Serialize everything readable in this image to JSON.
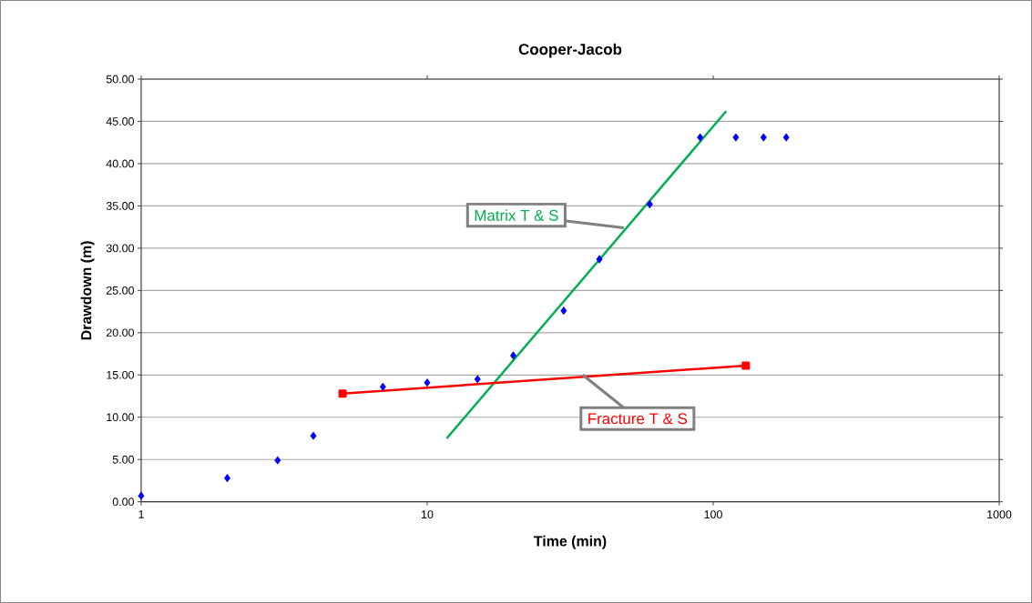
{
  "chart_data": {
    "type": "scatter",
    "title": "Cooper-Jacob",
    "xlabel": "Time (min)",
    "ylabel": "Drawdown (m)",
    "log": "x",
    "grid": "y",
    "xlim": [
      1,
      1000
    ],
    "xticks": [
      1,
      10,
      100,
      1000
    ],
    "ylim": [
      0,
      50
    ],
    "yticks": [
      {
        "value": 0,
        "label": "0.00"
      },
      {
        "value": 5,
        "label": "5.00"
      },
      {
        "value": 10,
        "label": "10.00"
      },
      {
        "value": 15,
        "label": "15.00"
      },
      {
        "value": 20,
        "label": "20.00"
      },
      {
        "value": 25,
        "label": "25.00"
      },
      {
        "value": 30,
        "label": "30.00"
      },
      {
        "value": 35,
        "label": "35.00"
      },
      {
        "value": 40,
        "label": "40.00"
      },
      {
        "value": 45,
        "label": "45.00"
      },
      {
        "value": 50,
        "label": "50.00"
      }
    ],
    "series": [
      {
        "color": "#0000ff",
        "marker": "diamond",
        "x": [
          1,
          2,
          3,
          4,
          7,
          10,
          15,
          20,
          30,
          40,
          60,
          90,
          120,
          150,
          180
        ],
        "values": [
          0.7,
          2.8,
          4.9,
          7.8,
          13.6,
          14.1,
          14.5,
          17.3,
          22.6,
          28.7,
          35.2,
          43.1,
          43.1,
          43.1,
          43.1
        ]
      },
      {
        "type": "line",
        "color": "#00b050",
        "marker": "none",
        "line_style": "solid",
        "x": [
          11.7,
          111
        ],
        "values": [
          7.5,
          46.2
        ]
      },
      {
        "type": "line",
        "color": "#ff0000",
        "marker": "square",
        "line_style": "solid",
        "x": [
          5.06,
          130
        ],
        "values": [
          12.8,
          16.1
        ]
      }
    ],
    "annotations": [
      {
        "text": "Matrix T & S",
        "x": 48.7,
        "y": 32.4
      },
      {
        "text": "Fracture T & S",
        "x": 35,
        "y": 15.0
      }
    ]
  }
}
